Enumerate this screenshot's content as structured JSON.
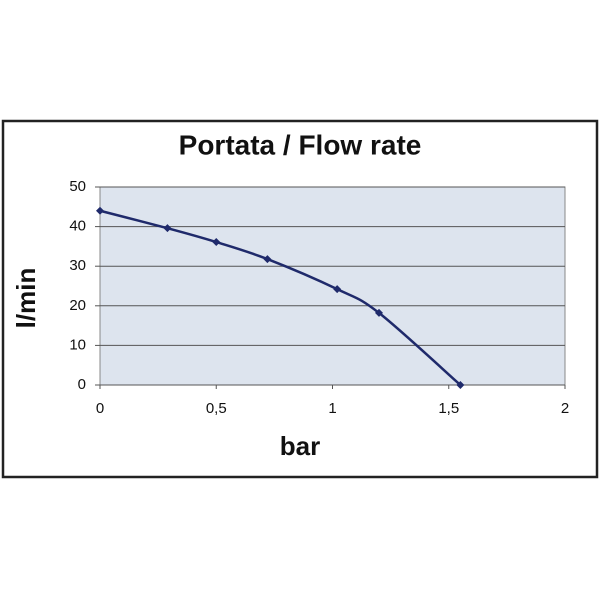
{
  "chart_data": {
    "type": "line",
    "title": "Portata / Flow rate",
    "x_label": "bar",
    "y_label": "l/min",
    "x": [
      0,
      0.29,
      0.5,
      0.72,
      1.02,
      1.2,
      1.55
    ],
    "series": [
      {
        "name": "Flow rate",
        "color": "#1f2a6b",
        "values": [
          44,
          39.6,
          36.1,
          31.8,
          24.2,
          18.2,
          0
        ]
      }
    ],
    "xlim": [
      0,
      2
    ],
    "xticks": [
      0,
      {
        "value": 0.5,
        "label": "0,5"
      },
      1,
      {
        "value": 1.5,
        "label": "1,5"
      },
      2
    ],
    "ylim": [
      0,
      50
    ],
    "yticks": [
      0,
      10,
      20,
      30,
      40,
      50
    ],
    "grid": true,
    "plot_background": "#dde4ee"
  }
}
